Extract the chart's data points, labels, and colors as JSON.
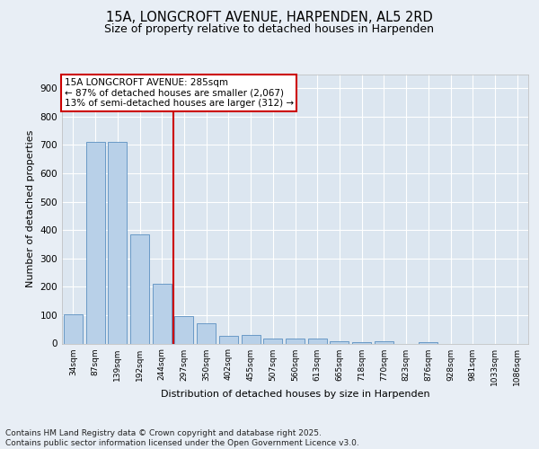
{
  "title1": "15A, LONGCROFT AVENUE, HARPENDEN, AL5 2RD",
  "title2": "Size of property relative to detached houses in Harpenden",
  "xlabel": "Distribution of detached houses by size in Harpenden",
  "ylabel": "Number of detached properties",
  "categories": [
    "34sqm",
    "87sqm",
    "139sqm",
    "192sqm",
    "244sqm",
    "297sqm",
    "350sqm",
    "402sqm",
    "455sqm",
    "507sqm",
    "560sqm",
    "613sqm",
    "665sqm",
    "718sqm",
    "770sqm",
    "823sqm",
    "876sqm",
    "928sqm",
    "981sqm",
    "1033sqm",
    "1086sqm"
  ],
  "values": [
    103,
    710,
    710,
    385,
    210,
    98,
    70,
    28,
    30,
    17,
    18,
    18,
    8,
    6,
    7,
    0,
    5,
    0,
    0,
    0,
    0
  ],
  "bar_color": "#b8d0e8",
  "bar_edge_color": "#5a8fc0",
  "vline_color": "#cc0000",
  "annotation_text": "15A LONGCROFT AVENUE: 285sqm\n← 87% of detached houses are smaller (2,067)\n13% of semi-detached houses are larger (312) →",
  "annotation_box_color": "#ffffff",
  "annotation_box_edge": "#cc0000",
  "ylim": [
    0,
    950
  ],
  "yticks": [
    0,
    100,
    200,
    300,
    400,
    500,
    600,
    700,
    800,
    900
  ],
  "bg_color": "#e8eef5",
  "plot_bg_color": "#dce6f0",
  "footer_text": "Contains HM Land Registry data © Crown copyright and database right 2025.\nContains public sector information licensed under the Open Government Licence v3.0.",
  "title1_fontsize": 10.5,
  "title2_fontsize": 9,
  "annotation_fontsize": 7.5,
  "footer_fontsize": 6.5,
  "ylabel_fontsize": 8,
  "xlabel_fontsize": 8
}
